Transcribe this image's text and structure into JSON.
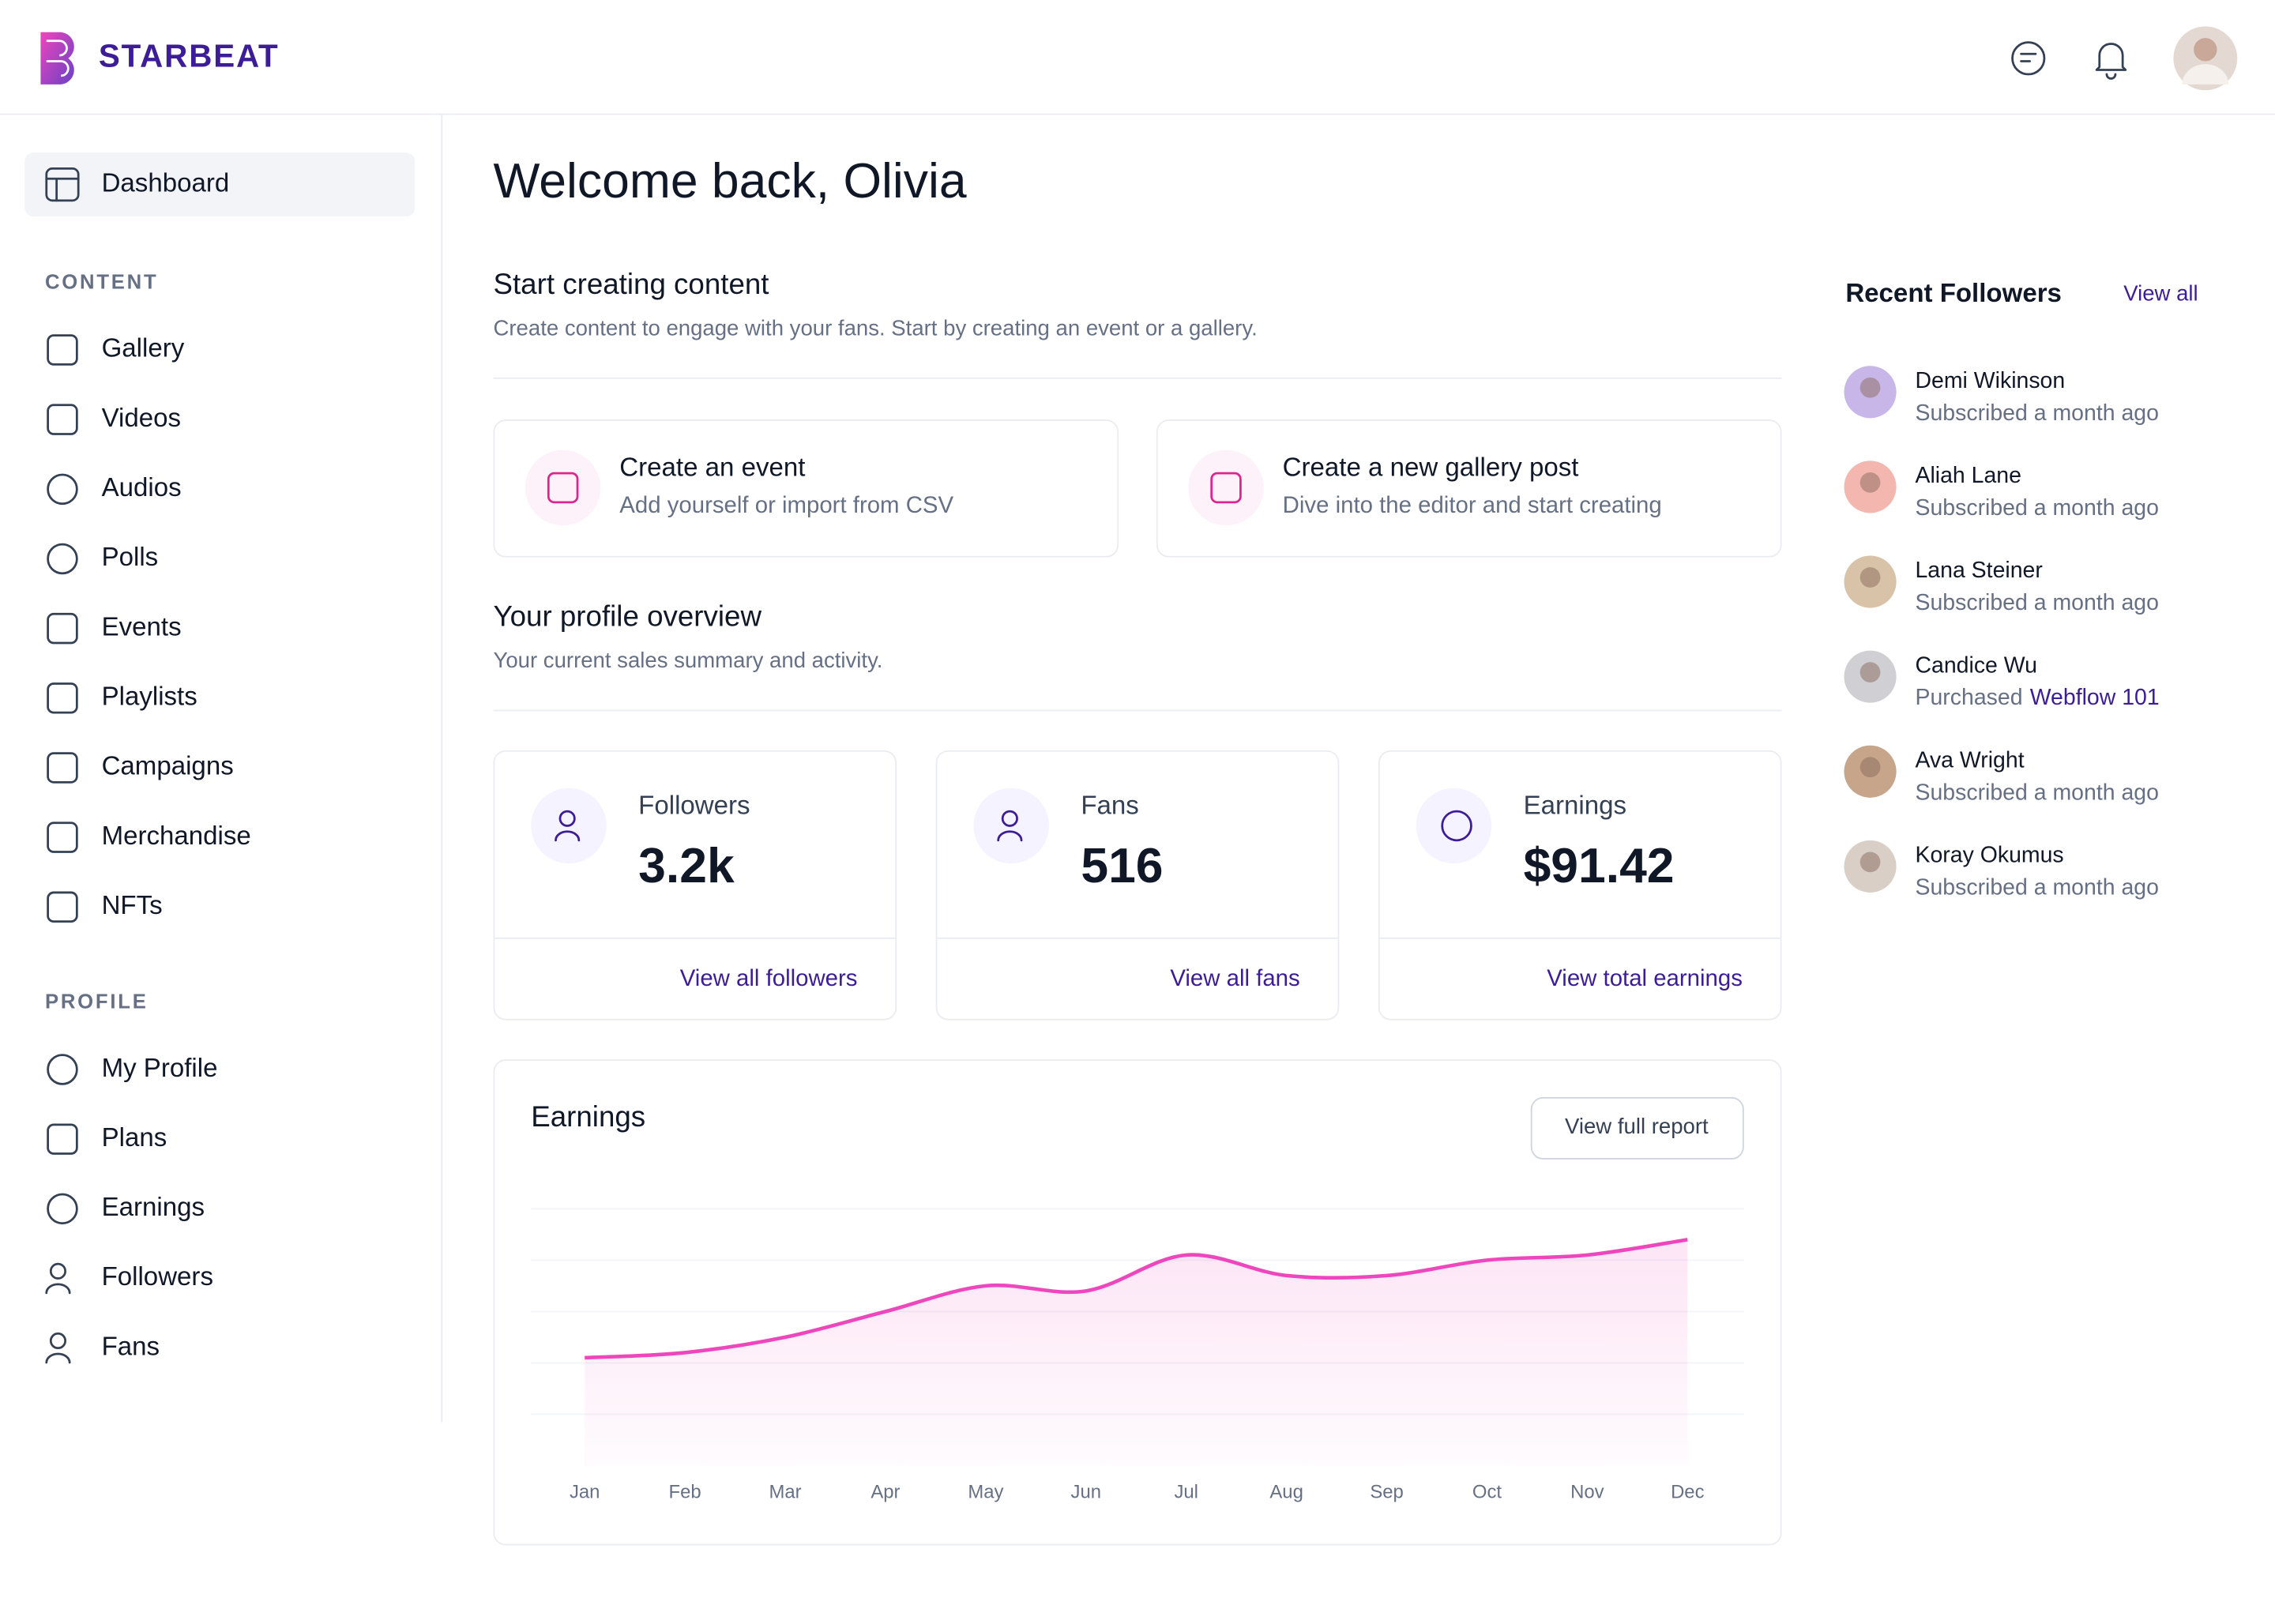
{
  "header": {
    "brand": "STARBEAT"
  },
  "sidebar": {
    "active": "Dashboard",
    "sections": [
      {
        "title": "CONTENT",
        "items": [
          "Gallery",
          "Videos",
          "Audios",
          "Polls",
          "Events",
          "Playlists",
          "Campaigns",
          "Merchandise",
          "NFTs"
        ]
      },
      {
        "title": "PROFILE",
        "items": [
          "My Profile",
          "Plans",
          "Earnings",
          "Followers",
          "Fans"
        ]
      }
    ]
  },
  "main": {
    "title": "Welcome back, Olivia",
    "start": {
      "title": "Start creating content",
      "subtitle": "Create content to engage with your fans. Start by creating an event or a gallery.",
      "cards": [
        {
          "title": "Create an event",
          "subtitle": "Add yourself or import from CSV"
        },
        {
          "title": "Create a new gallery post",
          "subtitle": "Dive into the editor and start creating"
        }
      ]
    },
    "overview": {
      "title": "Your profile overview",
      "subtitle": "Your current sales summary and activity.",
      "stats": [
        {
          "label": "Followers",
          "value": "3.2k",
          "link": "View all followers"
        },
        {
          "label": "Fans",
          "value": "516",
          "link": "View all fans"
        },
        {
          "label": "Earnings",
          "value": "$91.42",
          "link": "View total earnings"
        }
      ]
    },
    "earnings_card": {
      "title": "Earnings",
      "button": "View full report"
    }
  },
  "chart_data": {
    "type": "line",
    "categories": [
      "Jan",
      "Feb",
      "Mar",
      "Apr",
      "May",
      "Jun",
      "Jul",
      "Aug",
      "Sep",
      "Oct",
      "Nov",
      "Dec"
    ],
    "values": [
      2.1,
      2.2,
      2.5,
      3.0,
      3.5,
      3.4,
      4.1,
      3.7,
      3.7,
      4.0,
      4.1,
      4.4
    ],
    "color": "#ee46bc",
    "ylim": [
      0,
      5
    ],
    "grid": true
  },
  "followers": {
    "title": "Recent Followers",
    "view_all": "View all",
    "items": [
      {
        "name": "Demi Wikinson",
        "status": "Subscribed a month ago"
      },
      {
        "name": "Aliah Lane",
        "status": "Subscribed a month ago"
      },
      {
        "name": "Lana Steiner",
        "status": "Subscribed a month ago"
      },
      {
        "name": "Candice Wu",
        "status": "Purchased",
        "link": "Webflow 101"
      },
      {
        "name": "Ava Wright",
        "status": "Subscribed a month ago"
      },
      {
        "name": "Koray Okumus",
        "status": "Subscribed a month ago"
      }
    ]
  }
}
